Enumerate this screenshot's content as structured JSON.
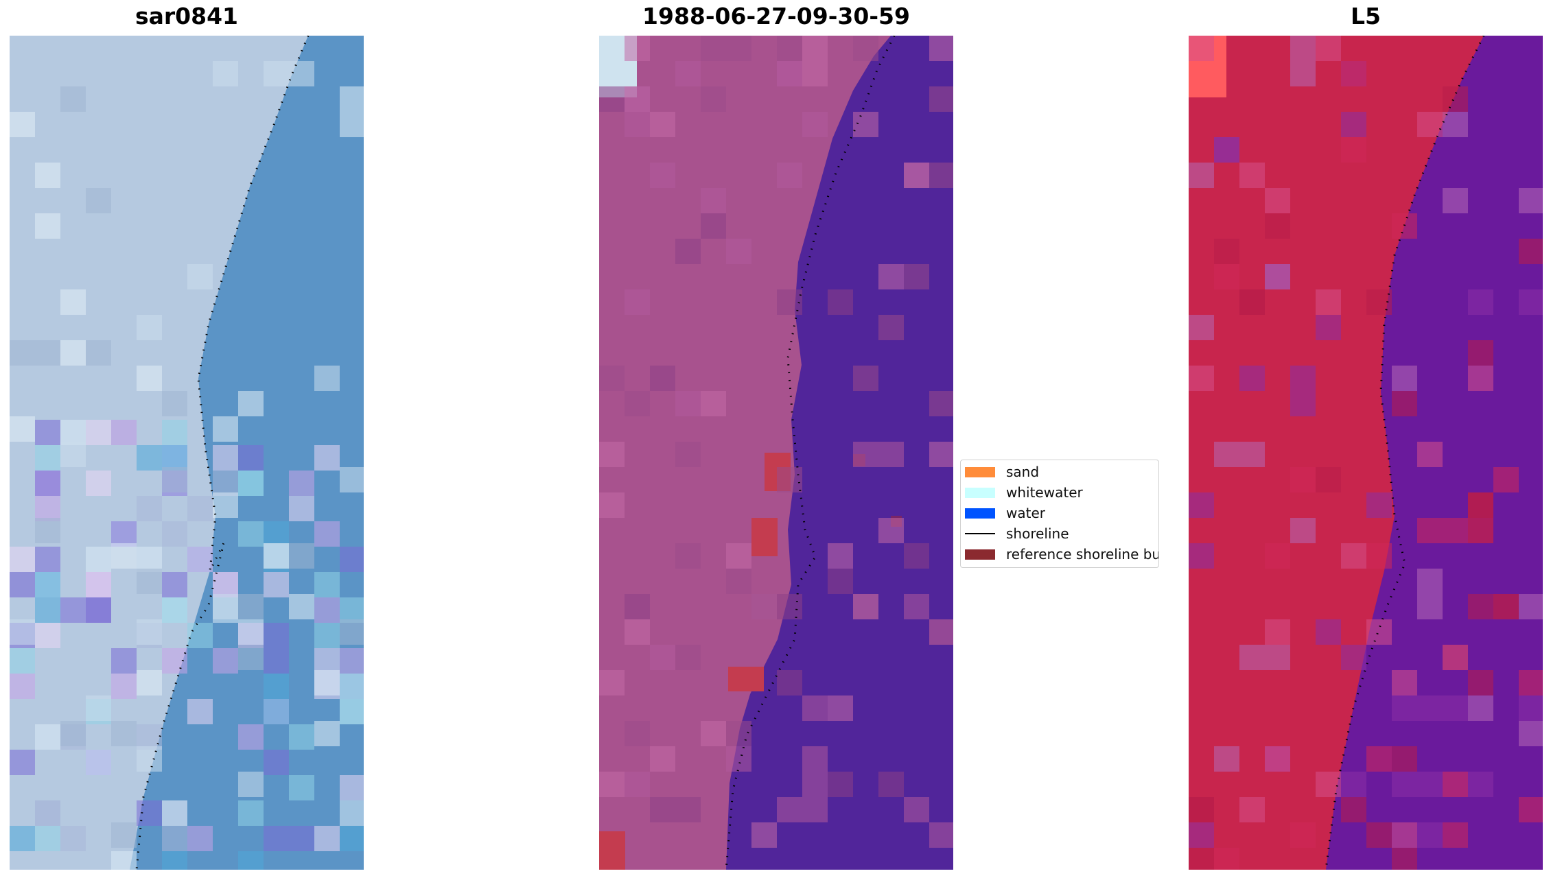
{
  "panels": [
    {
      "title": "sar0841",
      "colors": {
        "land": "#b5c9e0",
        "water": "#5b94c6"
      }
    },
    {
      "title": "1988-06-27-09-30-59",
      "colors": {
        "land": "#a8528e",
        "water": "#51259a"
      }
    },
    {
      "title": "L5",
      "colors": {
        "land": "#c8254d",
        "water": "#6a1a9c"
      }
    }
  ],
  "legend": {
    "items": [
      {
        "label": "sand",
        "color": "#ff8c3a",
        "icon": "patch"
      },
      {
        "label": "whitewater",
        "color": "#c8ffff",
        "icon": "patch"
      },
      {
        "label": "water",
        "color": "#0054ff",
        "icon": "patch"
      },
      {
        "label": "shoreline",
        "color": "#000000",
        "icon": "line"
      },
      {
        "label": "reference shoreline buffer",
        "color": "#8b2a2f",
        "icon": "patch"
      }
    ]
  }
}
